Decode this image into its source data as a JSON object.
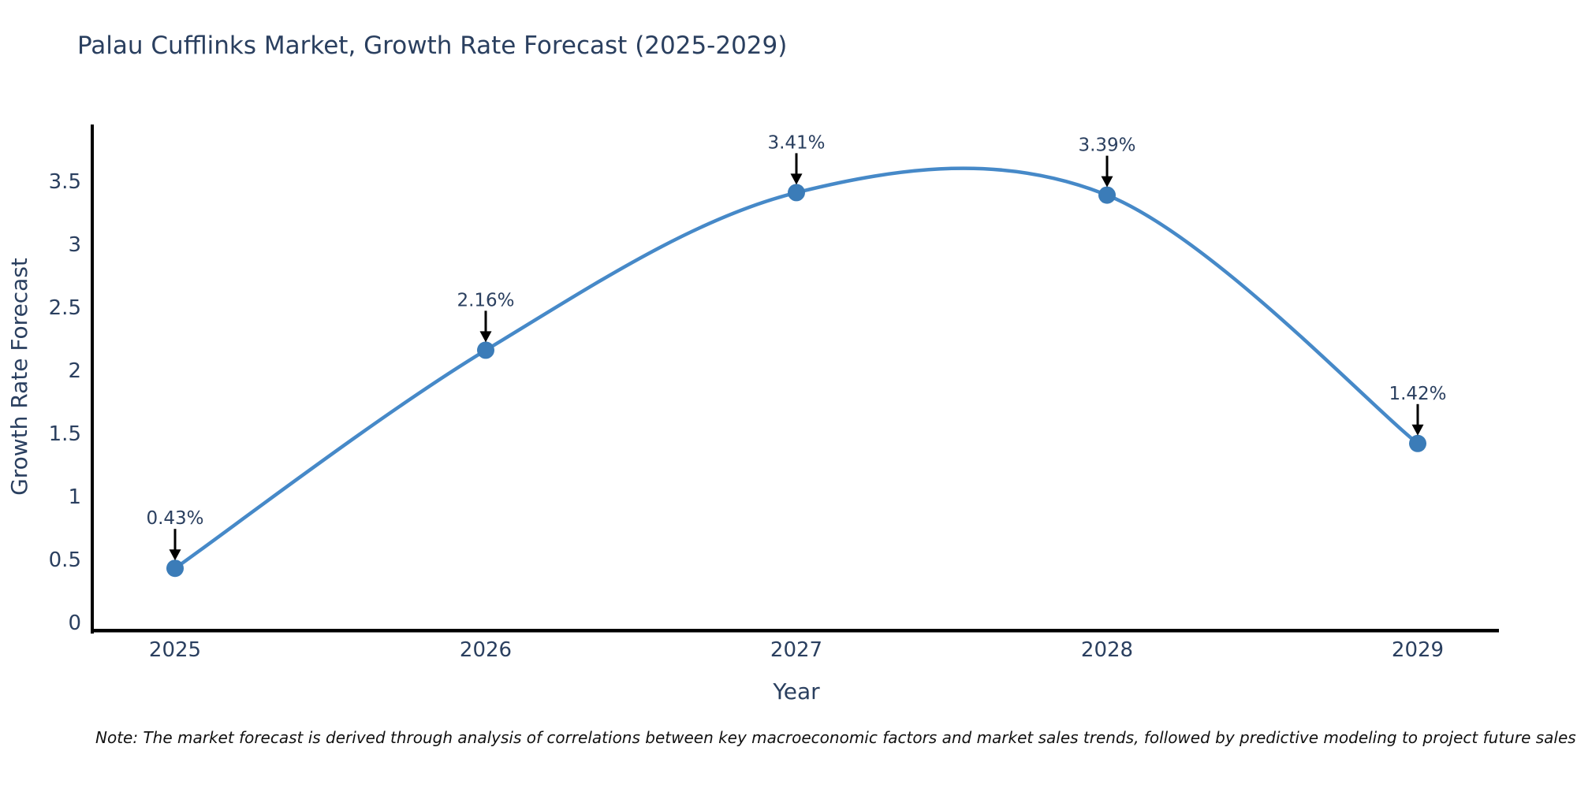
{
  "chart_data": {
    "type": "line",
    "title": "Palau Cufflinks Market, Growth Rate Forecast (2025-2029)",
    "xlabel": "Year",
    "ylabel": "Growth Rate Forecast",
    "categories": [
      "2025",
      "2026",
      "2027",
      "2028",
      "2029"
    ],
    "x": [
      2025,
      2026,
      2027,
      2028,
      2029
    ],
    "values": [
      0.43,
      2.16,
      3.41,
      3.39,
      1.42
    ],
    "point_labels": [
      "0.43%",
      "2.16%",
      "3.41%",
      "3.39%",
      "1.42%"
    ],
    "ytick_labels": [
      "0",
      "0.5",
      "1",
      "1.5",
      "2",
      "2.5",
      "3",
      "3.5"
    ],
    "ytick_values": [
      0,
      0.5,
      1,
      1.5,
      2,
      2.5,
      3,
      3.5
    ],
    "ylim": [
      0,
      4.0
    ],
    "line_shape": "spline",
    "grid": false,
    "legend_position": "none",
    "colors": {
      "line": "#4689c8",
      "marker": "#3b7cb8",
      "text": "#2a3f5f",
      "axis": "#000000",
      "annotation_arrow": "#000000",
      "note_text": "#111111",
      "background": "#ffffff"
    },
    "note": "Note: The market forecast is derived through analysis of correlations between key macroeconomic factors and market sales trends, followed by predictive modeling to project future sales"
  }
}
